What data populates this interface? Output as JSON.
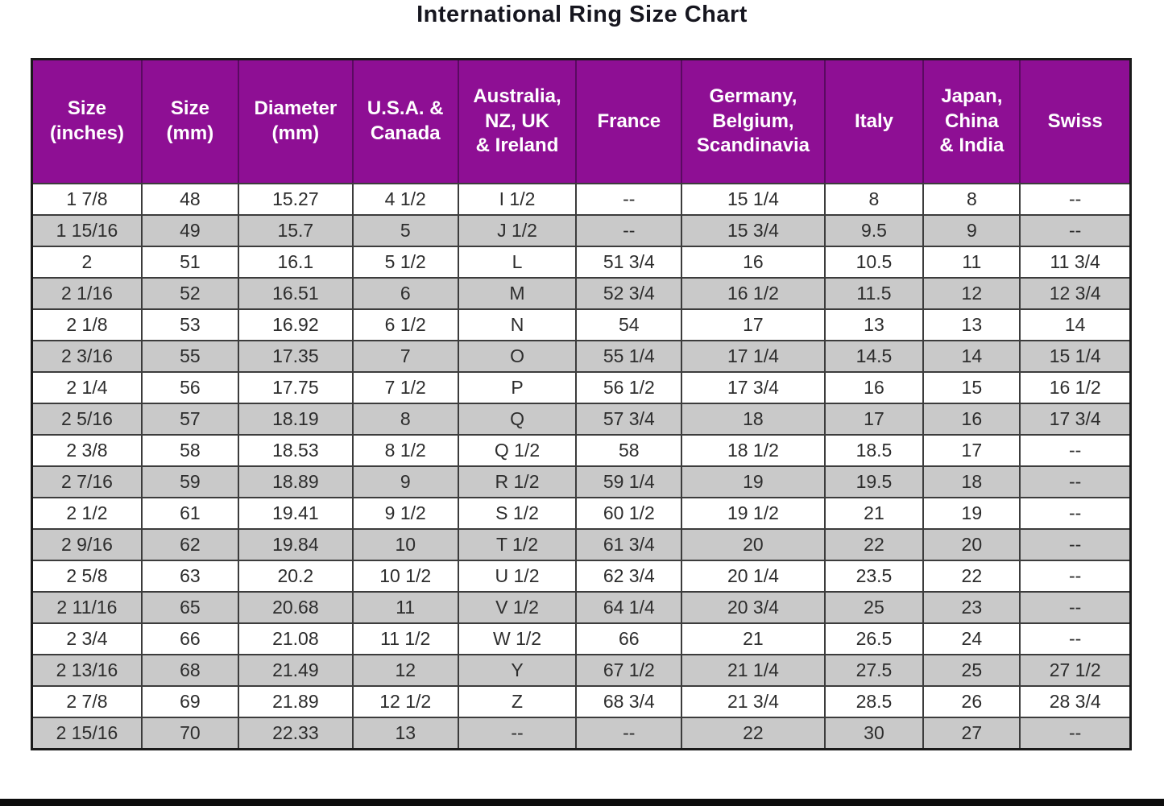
{
  "page": {
    "title": "International Ring Size Chart"
  },
  "colors": {
    "header_bg": "#8e0f94",
    "header_divider": "#5a0a61",
    "header_text": "#ffffff",
    "row_bg": "#ffffff",
    "row_alt_bg": "#c9c9c9",
    "grid_border": "#3c3c3c",
    "outer_border": "#1a1a1a",
    "cell_text": "#2d2d2d",
    "title_color": "#16161f",
    "bottom_bar": "#0c0c0c"
  },
  "chart_data": {
    "type": "table",
    "title": "International Ring Size Chart",
    "columns": [
      "Size\n(inches)",
      "Size\n(mm)",
      "Diameter\n(mm)",
      "U.S.A. &\nCanada",
      "Australia,\nNZ, UK\n& Ireland",
      "France",
      "Germany,\nBelgium,\nScandinavia",
      "Italy",
      "Japan,\nChina\n& India",
      "Swiss"
    ],
    "col_widths_percent": [
      10.0,
      8.8,
      10.4,
      9.6,
      10.75,
      9.6,
      13.0,
      9.0,
      8.8,
      10.05
    ],
    "rows": [
      [
        "1 7/8",
        "48",
        "15.27",
        "4 1/2",
        "I 1/2",
        "--",
        "15 1/4",
        "8",
        "8",
        "--"
      ],
      [
        "1 15/16",
        "49",
        "15.7",
        "5",
        "J 1/2",
        "--",
        "15 3/4",
        "9.5",
        "9",
        "--"
      ],
      [
        "2",
        "51",
        "16.1",
        "5 1/2",
        "L",
        "51 3/4",
        "16",
        "10.5",
        "11",
        "11 3/4"
      ],
      [
        "2 1/16",
        "52",
        "16.51",
        "6",
        "M",
        "52 3/4",
        "16 1/2",
        "11.5",
        "12",
        "12 3/4"
      ],
      [
        "2 1/8",
        "53",
        "16.92",
        "6 1/2",
        "N",
        "54",
        "17",
        "13",
        "13",
        "14"
      ],
      [
        "2 3/16",
        "55",
        "17.35",
        "7",
        "O",
        "55 1/4",
        "17 1/4",
        "14.5",
        "14",
        "15 1/4"
      ],
      [
        "2 1/4",
        "56",
        "17.75",
        "7 1/2",
        "P",
        "56 1/2",
        "17 3/4",
        "16",
        "15",
        "16 1/2"
      ],
      [
        "2 5/16",
        "57",
        "18.19",
        "8",
        "Q",
        "57 3/4",
        "18",
        "17",
        "16",
        "17 3/4"
      ],
      [
        "2 3/8",
        "58",
        "18.53",
        "8 1/2",
        "Q 1/2",
        "58",
        "18 1/2",
        "18.5",
        "17",
        "--"
      ],
      [
        "2 7/16",
        "59",
        "18.89",
        "9",
        "R 1/2",
        "59 1/4",
        "19",
        "19.5",
        "18",
        "--"
      ],
      [
        "2 1/2",
        "61",
        "19.41",
        "9 1/2",
        "S 1/2",
        "60 1/2",
        "19 1/2",
        "21",
        "19",
        "--"
      ],
      [
        "2 9/16",
        "62",
        "19.84",
        "10",
        "T 1/2",
        "61 3/4",
        "20",
        "22",
        "20",
        "--"
      ],
      [
        "2 5/8",
        "63",
        "20.2",
        "10 1/2",
        "U 1/2",
        "62 3/4",
        "20 1/4",
        "23.5",
        "22",
        "--"
      ],
      [
        "2 11/16",
        "65",
        "20.68",
        "11",
        "V 1/2",
        "64 1/4",
        "20 3/4",
        "25",
        "23",
        "--"
      ],
      [
        "2 3/4",
        "66",
        "21.08",
        "11 1/2",
        "W 1/2",
        "66",
        "21",
        "26.5",
        "24",
        "--"
      ],
      [
        "2 13/16",
        "68",
        "21.49",
        "12",
        "Y",
        "67 1/2",
        "21 1/4",
        "27.5",
        "25",
        "27 1/2"
      ],
      [
        "2 7/8",
        "69",
        "21.89",
        "12 1/2",
        "Z",
        "68 3/4",
        "21 3/4",
        "28.5",
        "26",
        "28 3/4"
      ],
      [
        "2 15/16",
        "70",
        "22.33",
        "13",
        "--",
        "--",
        "22",
        "30",
        "27",
        "--"
      ]
    ]
  }
}
